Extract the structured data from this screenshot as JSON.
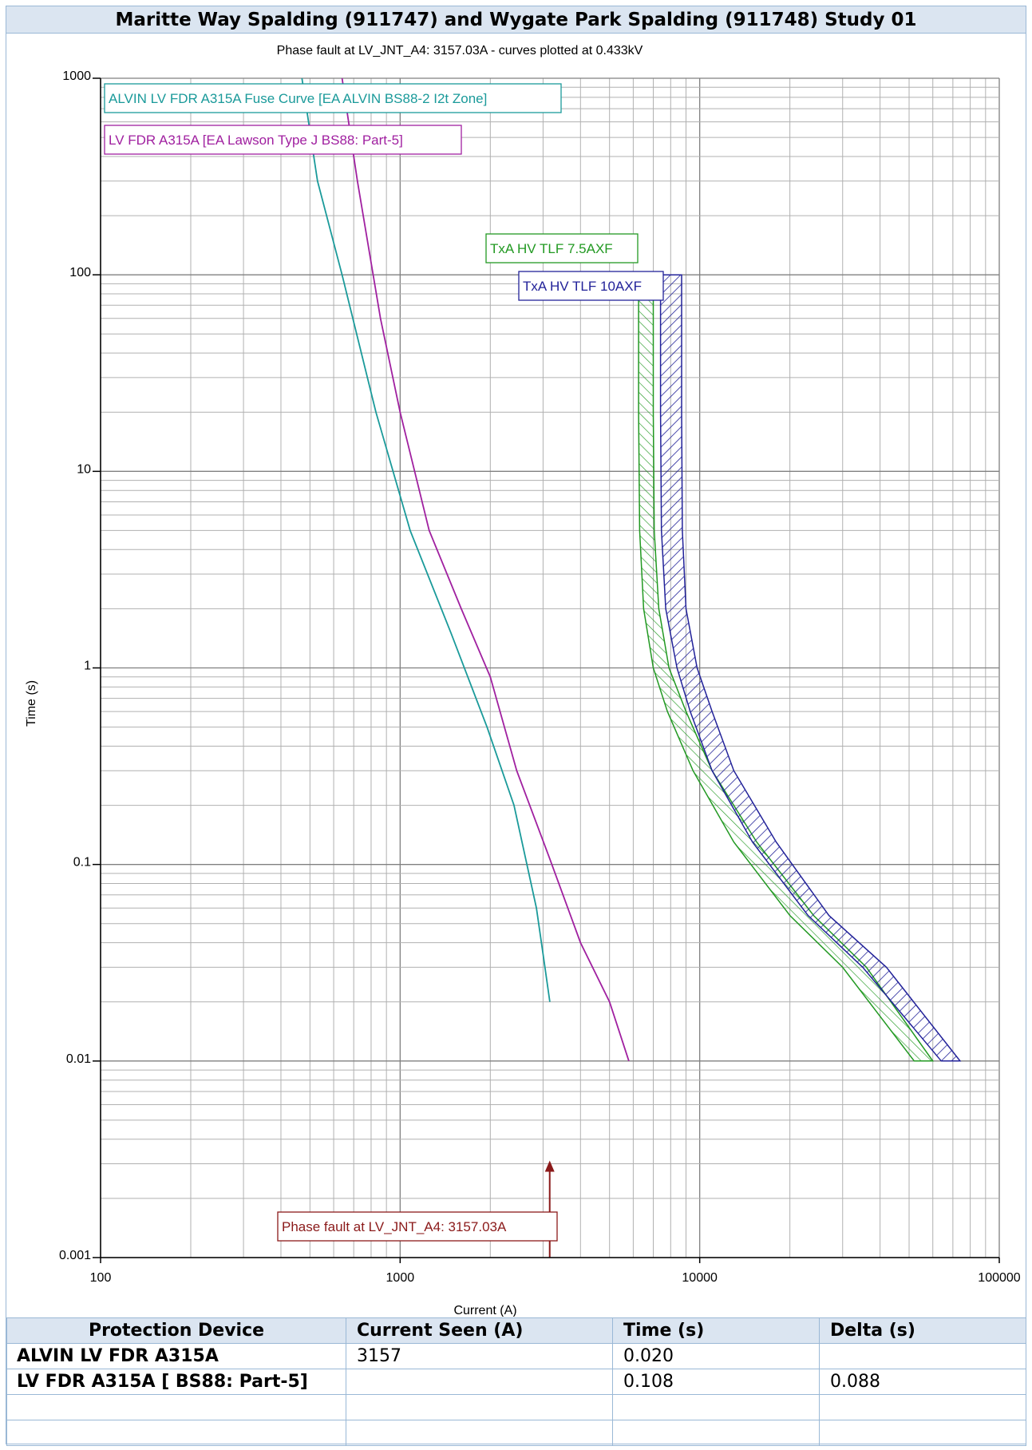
{
  "title": "Maritte Way Spalding (911747) and Wygate Park Spalding (911748) Study 01",
  "chart_data": {
    "type": "line",
    "title": "Phase fault at LV_JNT_A4: 3157.03A - curves plotted at 0.433kV",
    "xlabel": "Current (A)",
    "ylabel": "Time (s)",
    "x_scale": "log",
    "y_scale": "log",
    "xlim": [
      100,
      100000
    ],
    "ylim": [
      0.001,
      1000
    ],
    "x_ticks": [
      "100",
      "1000",
      "10000",
      "100000"
    ],
    "y_ticks": [
      "1000",
      "100",
      "10",
      "1",
      "0.1",
      "0.01",
      "0.001"
    ],
    "grid": true,
    "series": [
      {
        "name": "ALVIN LV FDR A315A Fuse Curve [EA ALVIN BS88-2 I2t Zone]",
        "color": "#1a9a9a",
        "points": [
          [
            470,
            1000
          ],
          [
            530,
            300
          ],
          [
            640,
            100
          ],
          [
            830,
            20
          ],
          [
            1080,
            5
          ],
          [
            1480,
            1.5
          ],
          [
            1950,
            0.5
          ],
          [
            2400,
            0.2
          ],
          [
            2850,
            0.06
          ],
          [
            3000,
            0.035
          ],
          [
            3160,
            0.02
          ]
        ]
      },
      {
        "name": "LV FDR A315A [EA Lawson Type J BS88: Part-5]",
        "color": "#a020a0",
        "points": [
          [
            640,
            1000
          ],
          [
            720,
            300
          ],
          [
            860,
            60
          ],
          [
            1000,
            20
          ],
          [
            1250,
            5
          ],
          [
            1600,
            2
          ],
          [
            2000,
            0.9
          ],
          [
            2450,
            0.3
          ],
          [
            3150,
            0.108
          ],
          [
            4000,
            0.04
          ],
          [
            5000,
            0.02
          ],
          [
            5800,
            0.01
          ]
        ]
      },
      {
        "name": "TxA HV TLF 7.5AXF",
        "color": "#229922",
        "band": true,
        "left": [
          [
            6250,
            100
          ],
          [
            6250,
            20
          ],
          [
            6300,
            5
          ],
          [
            6500,
            2
          ],
          [
            7000,
            1
          ],
          [
            7800,
            0.6
          ],
          [
            9500,
            0.3
          ],
          [
            13000,
            0.13
          ],
          [
            20000,
            0.055
          ],
          [
            30000,
            0.03
          ],
          [
            52000,
            0.01
          ]
        ],
        "right": [
          [
            7000,
            100
          ],
          [
            7000,
            20
          ],
          [
            7050,
            5
          ],
          [
            7300,
            2
          ],
          [
            7900,
            1
          ],
          [
            9000,
            0.6
          ],
          [
            11000,
            0.3
          ],
          [
            15500,
            0.13
          ],
          [
            24000,
            0.055
          ],
          [
            36000,
            0.03
          ],
          [
            60000,
            0.01
          ]
        ]
      },
      {
        "name": "TxA HV TLF 10AXF",
        "color": "#222299",
        "band": true,
        "left": [
          [
            7400,
            100
          ],
          [
            7400,
            20
          ],
          [
            7450,
            5
          ],
          [
            7700,
            2
          ],
          [
            8400,
            1
          ],
          [
            9300,
            0.6
          ],
          [
            11000,
            0.3
          ],
          [
            15000,
            0.13
          ],
          [
            23000,
            0.055
          ],
          [
            35000,
            0.03
          ],
          [
            64000,
            0.01
          ]
        ],
        "right": [
          [
            8700,
            100
          ],
          [
            8700,
            20
          ],
          [
            8750,
            5
          ],
          [
            9000,
            2
          ],
          [
            9800,
            1
          ],
          [
            11000,
            0.6
          ],
          [
            13000,
            0.3
          ],
          [
            18000,
            0.13
          ],
          [
            27000,
            0.055
          ],
          [
            42000,
            0.03
          ],
          [
            74000,
            0.01
          ]
        ]
      }
    ],
    "fault_marker": {
      "label": "Phase fault at LV_JNT_A4: 3157.03A",
      "x": 3157.03,
      "y_top": 0.003,
      "color": "#8b1a1a"
    }
  },
  "table": {
    "headers": [
      "Protection Device",
      "Current Seen (A)",
      "Time (s)",
      "Delta (s)"
    ],
    "rows": [
      [
        "ALVIN LV FDR A315A",
        "3157",
        "0.020",
        ""
      ],
      [
        "LV FDR A315A [ BS88: Part-5]",
        "",
        "0.108",
        "0.088"
      ],
      [
        "",
        "",
        "",
        ""
      ],
      [
        "",
        "",
        "",
        ""
      ]
    ]
  }
}
